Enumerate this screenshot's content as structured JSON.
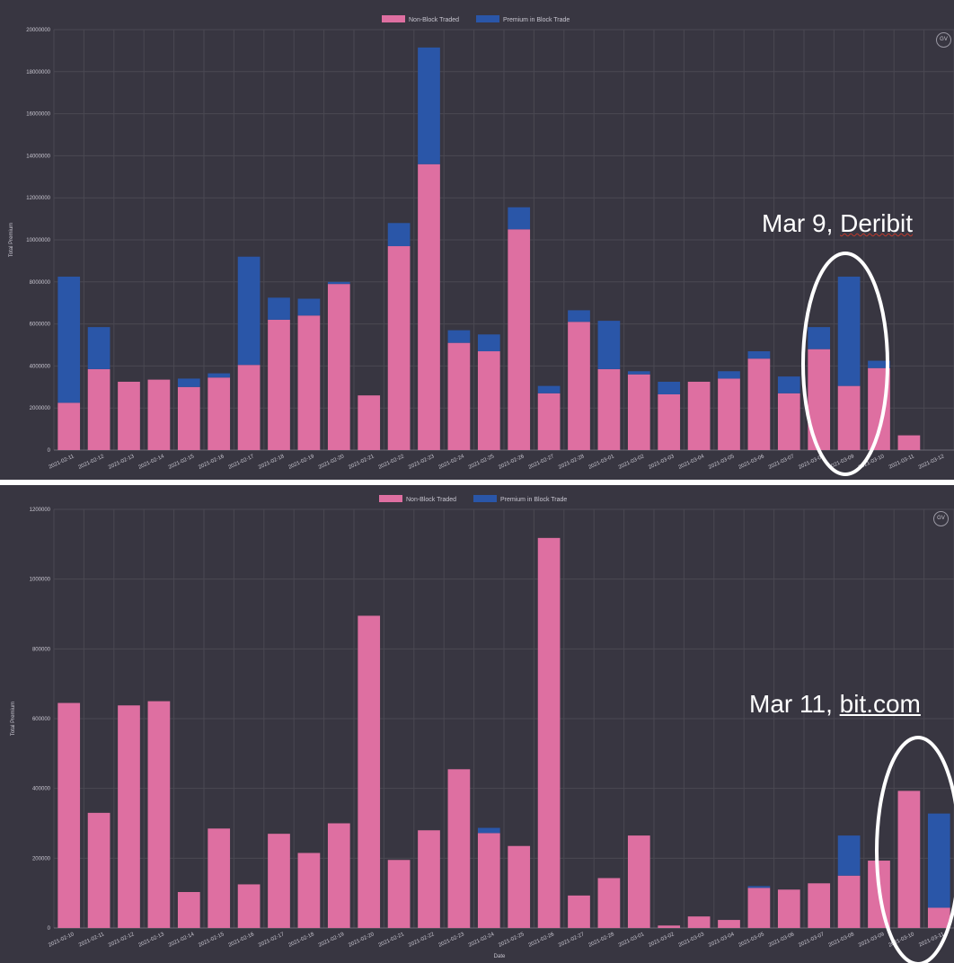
{
  "colors": {
    "non_block": "#de6fa1",
    "block": "#2a56a8",
    "background": "#383641",
    "grid": "#4a4852",
    "tick": "#c8c6d0"
  },
  "charts": [
    {
      "legend": [
        "Non-Block Traded",
        "Premium in Block Trade"
      ],
      "ylabel": "Total Premium",
      "xlabel": "",
      "badge": "GV",
      "callout": {
        "prefix": "Mar 9, ",
        "link": "Deribit"
      }
    },
    {
      "legend": [
        "Non-Block Traded",
        "Premium in Block Trade"
      ],
      "ylabel": "Total Premium",
      "xlabel": "Date",
      "badge": "GV",
      "callout": {
        "prefix": "Mar 11, ",
        "link": "bit.com"
      }
    }
  ],
  "chart_data": [
    {
      "type": "bar",
      "stacked": true,
      "categories": [
        "2021-02-11",
        "2021-02-12",
        "2021-02-13",
        "2021-02-14",
        "2021-02-15",
        "2021-02-16",
        "2021-02-17",
        "2021-02-18",
        "2021-02-19",
        "2021-02-20",
        "2021-02-21",
        "2021-02-22",
        "2021-02-23",
        "2021-02-24",
        "2021-02-25",
        "2021-02-26",
        "2021-02-27",
        "2021-02-28",
        "2021-03-01",
        "2021-03-02",
        "2021-03-03",
        "2021-03-04",
        "2021-03-05",
        "2021-03-06",
        "2021-03-07",
        "2021-03-08",
        "2021-03-09",
        "2021-03-10",
        "2021-03-11",
        "2021-03-12"
      ],
      "series": [
        {
          "name": "Non-Block Traded",
          "values": [
            2250000,
            3850000,
            3250000,
            3350000,
            3000000,
            3450000,
            4050000,
            6200000,
            6400000,
            7900000,
            2600000,
            9700000,
            13600000,
            5100000,
            4700000,
            10500000,
            2700000,
            6100000,
            3850000,
            3600000,
            2650000,
            3250000,
            3400000,
            4350000,
            2700000,
            4800000,
            3050000,
            3900000,
            700000,
            0
          ]
        },
        {
          "name": "Premium in Block Trade",
          "values": [
            6000000,
            2000000,
            0,
            0,
            400000,
            200000,
            5150000,
            1050000,
            800000,
            100000,
            0,
            1100000,
            5550000,
            600000,
            800000,
            1050000,
            350000,
            550000,
            2300000,
            150000,
            600000,
            0,
            350000,
            350000,
            800000,
            1050000,
            5200000,
            350000,
            0,
            0
          ]
        }
      ],
      "title": "",
      "xlabel": "",
      "ylabel": "Total Premium",
      "ylim": [
        0,
        20000000
      ],
      "yticks": [
        0,
        2000000,
        4000000,
        6000000,
        8000000,
        10000000,
        12000000,
        14000000,
        16000000,
        18000000,
        20000000
      ],
      "grid": true,
      "legend": "top-center"
    },
    {
      "type": "bar",
      "stacked": true,
      "categories": [
        "2021-02-10",
        "2021-02-11",
        "2021-02-12",
        "2021-02-13",
        "2021-02-14",
        "2021-02-15",
        "2021-02-16",
        "2021-02-17",
        "2021-02-18",
        "2021-02-19",
        "2021-02-20",
        "2021-02-21",
        "2021-02-22",
        "2021-02-23",
        "2021-02-24",
        "2021-02-25",
        "2021-02-26",
        "2021-02-27",
        "2021-02-28",
        "2021-03-01",
        "2021-03-02",
        "2021-03-03",
        "2021-03-04",
        "2021-03-05",
        "2021-03-06",
        "2021-03-07",
        "2021-03-08",
        "2021-03-09",
        "2021-03-10",
        "2021-03-11"
      ],
      "series": [
        {
          "name": "Non-Block Traded",
          "values": [
            645000,
            330000,
            638000,
            650000,
            103000,
            285000,
            125000,
            270000,
            215000,
            300000,
            895000,
            195000,
            280000,
            455000,
            272000,
            235000,
            1118000,
            93000,
            143000,
            265000,
            7000,
            33000,
            23000,
            115000,
            110000,
            128000,
            150000,
            193000,
            393000,
            58000
          ]
        },
        {
          "name": "Premium in Block Trade",
          "values": [
            0,
            0,
            0,
            0,
            0,
            0,
            0,
            0,
            0,
            0,
            0,
            0,
            0,
            0,
            15000,
            0,
            0,
            0,
            0,
            0,
            0,
            0,
            0,
            5000,
            0,
            0,
            115000,
            0,
            0,
            270000
          ]
        }
      ],
      "title": "",
      "xlabel": "Date",
      "ylabel": "Total Premium",
      "ylim": [
        0,
        1200000
      ],
      "yticks": [
        0,
        200000,
        400000,
        600000,
        800000,
        1000000,
        1200000
      ],
      "grid": true,
      "legend": "top-center"
    }
  ]
}
